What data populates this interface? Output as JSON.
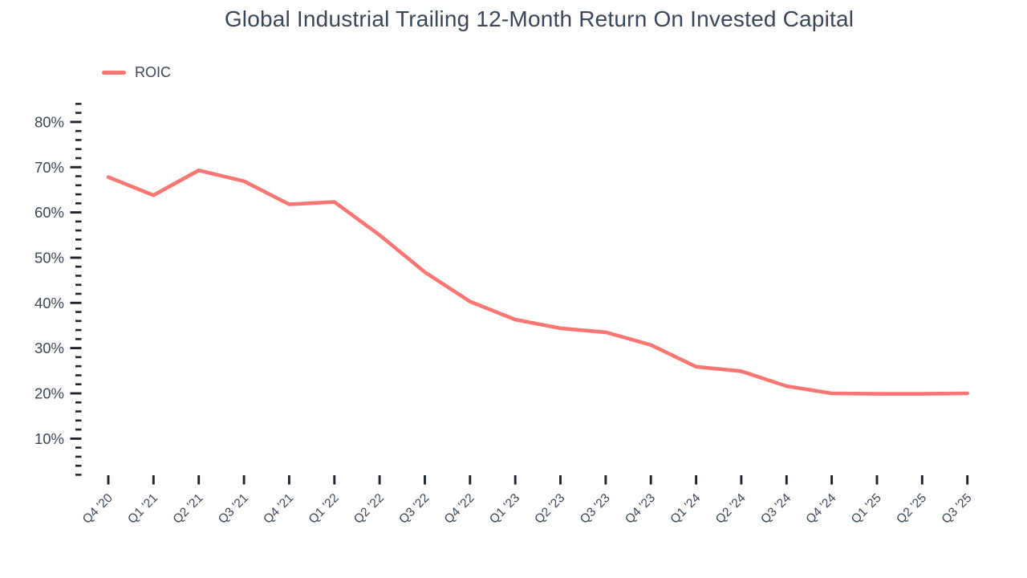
{
  "chart": {
    "title": "Global Industrial Trailing 12-Month Return On Invested Capital",
    "legend_label": "ROIC"
  },
  "chart_data": {
    "type": "line",
    "title": "Global Industrial Trailing 12-Month Return On Invested Capital",
    "xlabel": "",
    "ylabel": "",
    "y_unit": "%",
    "categories": [
      "Q4 '20",
      "Q1 '21",
      "Q2 '21",
      "Q3 '21",
      "Q4 '21",
      "Q1 '22",
      "Q2 '22",
      "Q3 '22",
      "Q4 '22",
      "Q1 '23",
      "Q2 '23",
      "Q3 '23",
      "Q4 '23",
      "Q1 '24",
      "Q2 '24",
      "Q3 '24",
      "Q4 '24",
      "Q1 '25",
      "Q2 '25",
      "Q3 '25"
    ],
    "series": [
      {
        "name": "ROIC",
        "values": [
          67.8,
          63.8,
          69.3,
          66.9,
          61.8,
          62.3,
          55.0,
          46.8,
          40.3,
          36.3,
          34.4,
          33.5,
          30.7,
          25.9,
          24.9,
          21.6,
          20.0,
          19.9,
          19.9,
          20.0
        ]
      }
    ],
    "ylim": [
      0,
      85
    ],
    "y_tick_labels": [
      "10%",
      "20%",
      "30%",
      "40%",
      "50%",
      "60%",
      "70%",
      "80%"
    ],
    "y_major_tick_step": 10,
    "y_minor_tick_step": 2,
    "grid": false,
    "legend_position": "top-left",
    "colors": {
      "line": "#FA7672",
      "text": "#3A4759",
      "tick": "#20242C",
      "background": "#FFFFFF"
    }
  }
}
